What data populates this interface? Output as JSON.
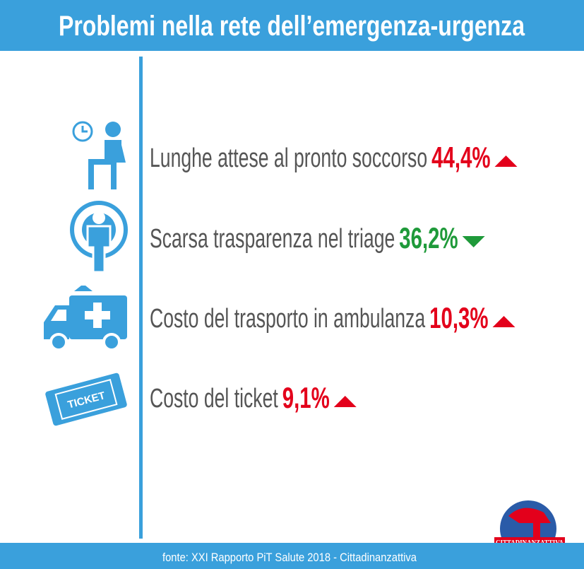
{
  "header": {
    "title": "Problemi nella rete dell’emergenza-urgenza"
  },
  "items": [
    {
      "label": "Lunghe attese al pronto soccorso",
      "value": "44,4%",
      "trend": "up",
      "color": "#e3001b"
    },
    {
      "label": "Scarsa trasparenza nel triage",
      "value": "36,2%",
      "trend": "down",
      "color": "#1f9a3a"
    },
    {
      "label": "Costo del trasporto in ambulanza",
      "value": "10,3%",
      "trend": "up",
      "color": "#e3001b"
    },
    {
      "label": "Costo del ticket",
      "value": "9,1%",
      "trend": "up",
      "color": "#e3001b"
    }
  ],
  "ticket_icon": {
    "text": "TICKET"
  },
  "footer": {
    "source": "fonte: XXI Rapporto PiT Salute 2018 - Cittadinanzattiva"
  },
  "logo": {
    "text": "CITTADINANZATTIVA"
  }
}
